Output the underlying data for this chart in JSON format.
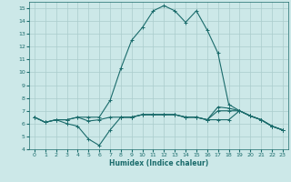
{
  "xlabel": "Humidex (Indice chaleur)",
  "background_color": "#cce8e8",
  "grid_color": "#aacccc",
  "line_color": "#1a6b6b",
  "xlim_min": -0.5,
  "xlim_max": 23.5,
  "ylim_min": 4,
  "ylim_max": 15.5,
  "yticks": [
    4,
    5,
    6,
    7,
    8,
    9,
    10,
    11,
    12,
    13,
    14,
    15
  ],
  "xticks": [
    0,
    1,
    2,
    3,
    4,
    5,
    6,
    7,
    8,
    9,
    10,
    11,
    12,
    13,
    14,
    15,
    16,
    17,
    18,
    19,
    20,
    21,
    22,
    23
  ],
  "lines": [
    {
      "x": [
        0,
        1,
        2,
        3,
        4,
        5,
        6,
        7,
        8,
        9,
        10,
        11,
        12,
        13,
        14,
        15,
        16,
        17,
        18,
        19,
        20,
        21,
        22,
        23
      ],
      "y": [
        6.5,
        6.1,
        6.3,
        6.3,
        6.5,
        6.5,
        6.5,
        7.8,
        10.3,
        12.5,
        13.5,
        14.8,
        15.2,
        14.8,
        13.9,
        14.8,
        13.3,
        11.5,
        7.5,
        7.0,
        6.6,
        6.3,
        5.8,
        5.5
      ]
    },
    {
      "x": [
        0,
        1,
        2,
        3,
        4,
        5,
        6,
        7,
        8,
        9,
        10,
        11,
        12,
        13,
        14,
        15,
        16,
        17,
        18,
        19,
        20,
        21,
        22,
        23
      ],
      "y": [
        6.5,
        6.1,
        6.3,
        6.0,
        5.8,
        4.8,
        4.3,
        5.5,
        6.5,
        6.5,
        6.7,
        6.7,
        6.7,
        6.7,
        6.5,
        6.5,
        6.3,
        6.3,
        6.3,
        7.0,
        6.6,
        6.3,
        5.8,
        5.5
      ]
    },
    {
      "x": [
        0,
        1,
        2,
        3,
        4,
        5,
        6,
        7,
        8,
        9,
        10,
        11,
        12,
        13,
        14,
        15,
        16,
        17,
        18,
        19,
        20,
        21,
        22,
        23
      ],
      "y": [
        6.5,
        6.1,
        6.3,
        6.3,
        6.5,
        6.2,
        6.3,
        6.5,
        6.5,
        6.5,
        6.7,
        6.7,
        6.7,
        6.7,
        6.5,
        6.5,
        6.3,
        7.3,
        7.2,
        7.0,
        6.6,
        6.3,
        5.8,
        5.5
      ]
    },
    {
      "x": [
        8,
        9,
        10,
        11,
        12,
        13,
        14,
        15,
        16,
        17,
        18,
        19,
        20,
        21,
        22,
        23
      ],
      "y": [
        6.5,
        6.5,
        6.7,
        6.7,
        6.7,
        6.7,
        6.5,
        6.5,
        6.3,
        7.0,
        7.0,
        7.0,
        6.6,
        6.3,
        5.8,
        5.5
      ]
    }
  ]
}
